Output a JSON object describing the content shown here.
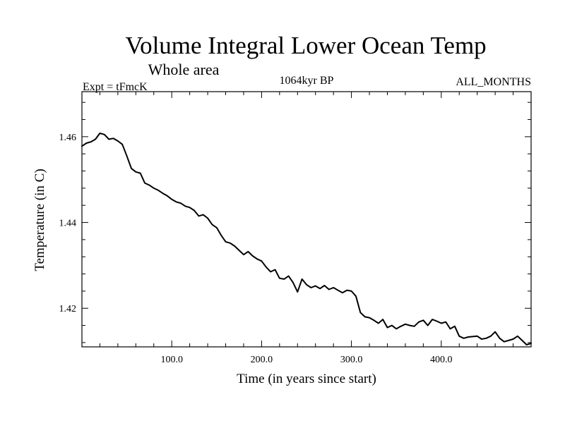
{
  "chart_data": {
    "type": "line",
    "title": "Volume Integral Lower Ocean Temp",
    "subtitle": "Whole area",
    "left_label": "Expt = tFmcK",
    "center_label": "1064kyr BP",
    "right_label": "ALL_MONTHS",
    "xlabel": "Time (in years since start)",
    "ylabel": "Temperature (in C)",
    "xlim": [
      0,
      500
    ],
    "ylim": [
      1.411,
      1.4705
    ],
    "xticks": [
      100,
      200,
      300,
      400
    ],
    "xtick_labels": [
      "100.0",
      "200.0",
      "300.0",
      "400.0"
    ],
    "yticks": [
      1.42,
      1.44,
      1.46
    ],
    "ytick_labels": [
      "1.42",
      "1.44",
      "1.46"
    ],
    "grid": false,
    "line_color": "#000000",
    "series": [
      {
        "name": "Volume integral lower ocean temperature",
        "x": [
          0,
          5,
          10,
          15,
          20,
          25,
          30,
          35,
          40,
          45,
          50,
          55,
          60,
          65,
          70,
          75,
          80,
          85,
          90,
          95,
          100,
          105,
          110,
          115,
          120,
          125,
          130,
          135,
          140,
          145,
          150,
          155,
          160,
          165,
          170,
          175,
          180,
          185,
          190,
          195,
          200,
          205,
          210,
          215,
          220,
          225,
          230,
          235,
          240,
          245,
          250,
          255,
          260,
          265,
          270,
          275,
          280,
          285,
          290,
          295,
          300,
          305,
          310,
          315,
          320,
          325,
          330,
          335,
          340,
          345,
          350,
          355,
          360,
          365,
          370,
          375,
          380,
          385,
          390,
          395,
          400,
          405,
          410,
          415,
          420,
          425,
          430,
          435,
          440,
          445,
          450,
          455,
          460,
          465,
          470,
          475,
          480,
          485,
          490,
          495,
          500
        ],
        "values": [
          1.4578,
          1.4585,
          1.4588,
          1.4594,
          1.4608,
          1.4605,
          1.4594,
          1.4596,
          1.459,
          1.4582,
          1.4555,
          1.4526,
          1.4518,
          1.4515,
          1.4492,
          1.4487,
          1.448,
          1.4475,
          1.4468,
          1.4462,
          1.4454,
          1.4448,
          1.4445,
          1.4438,
          1.4435,
          1.4428,
          1.4415,
          1.4418,
          1.441,
          1.4395,
          1.4388,
          1.437,
          1.4355,
          1.4352,
          1.4345,
          1.4335,
          1.4325,
          1.4332,
          1.4322,
          1.4315,
          1.431,
          1.4296,
          1.4285,
          1.429,
          1.427,
          1.4268,
          1.4275,
          1.426,
          1.4238,
          1.4268,
          1.4255,
          1.4248,
          1.4252,
          1.4246,
          1.4253,
          1.4244,
          1.4248,
          1.4242,
          1.4236,
          1.4242,
          1.424,
          1.4228,
          1.419,
          1.418,
          1.4178,
          1.4172,
          1.4165,
          1.4174,
          1.4155,
          1.416,
          1.4152,
          1.4158,
          1.4163,
          1.416,
          1.4158,
          1.4168,
          1.4172,
          1.416,
          1.4174,
          1.417,
          1.4165,
          1.4168,
          1.4152,
          1.4158,
          1.4135,
          1.413,
          1.4133,
          1.4134,
          1.4135,
          1.4128,
          1.413,
          1.4135,
          1.4145,
          1.413,
          1.4122,
          1.4125,
          1.4128,
          1.4135,
          1.4125,
          1.4115,
          1.4118
        ]
      }
    ]
  }
}
